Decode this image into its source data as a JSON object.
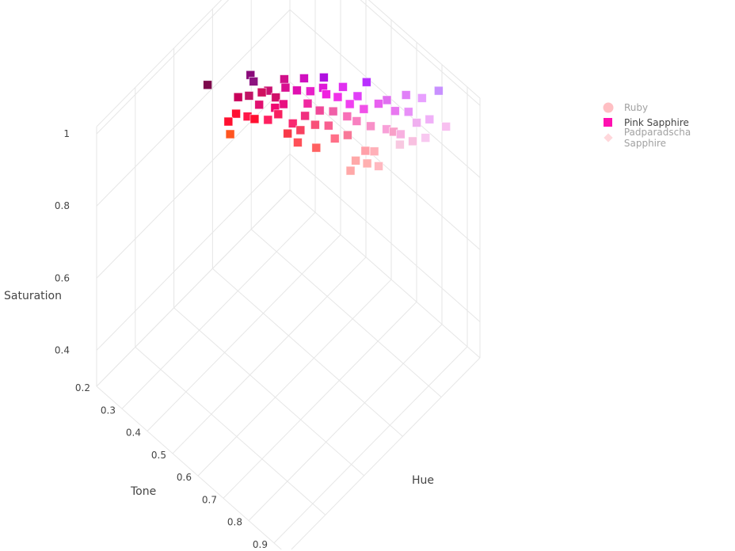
{
  "chart_data": {
    "type": "scatter3d",
    "axes": {
      "x": {
        "title": "Hue",
        "range": [
          0,
          1
        ],
        "ticks": []
      },
      "y": {
        "title": "Tone",
        "range": [
          0.2,
          0.95
        ],
        "ticks": [
          "0.2",
          "0.3",
          "0.4",
          "0.5",
          "0.6",
          "0.7",
          "0.8",
          "0.9"
        ]
      },
      "z": {
        "title": "Saturation",
        "range": [
          0.3,
          1.02
        ],
        "ticks": [
          "0.4",
          "0.6",
          "0.8",
          "1"
        ]
      }
    },
    "grid": true,
    "legend_position": "top-right",
    "legend": [
      {
        "name": "Ruby",
        "symbol": "circle",
        "color": "#ff8088",
        "visible": false
      },
      {
        "name": "Pink Sapphire",
        "symbol": "square",
        "color": "#ff10b0",
        "visible": true
      },
      {
        "name": "Padparadscha Sapphire",
        "symbol": "diamond",
        "color": "#ffb0b8",
        "visible": false
      }
    ],
    "series": [
      {
        "name": "Pink Sapphire",
        "point_fields": [
          "hue",
          "tone",
          "saturation",
          "color"
        ],
        "points": [
          [
            0.57,
            0.31,
            0.97,
            "#7d0a4c"
          ],
          [
            0.44,
            0.38,
            0.97,
            "#8a0a7a"
          ],
          [
            0.45,
            0.4,
            0.97,
            "#8d1380"
          ],
          [
            0.53,
            0.4,
            0.97,
            "#c8005a"
          ],
          [
            0.5,
            0.42,
            0.97,
            "#c01465"
          ],
          [
            0.58,
            0.43,
            0.97,
            "#ff1030"
          ],
          [
            0.62,
            0.43,
            0.97,
            "#ff1030"
          ],
          [
            0.65,
            0.46,
            0.97,
            "#ff5520"
          ],
          [
            0.56,
            0.46,
            0.97,
            "#ff1848"
          ],
          [
            0.55,
            0.48,
            0.97,
            "#ff1030"
          ],
          [
            0.37,
            0.46,
            0.97,
            "#d0108a"
          ],
          [
            0.32,
            0.5,
            0.97,
            "#d010c0"
          ],
          [
            0.27,
            0.54,
            0.97,
            "#b010e0"
          ],
          [
            0.18,
            0.64,
            0.97,
            "#b830ff"
          ],
          [
            0.03,
            0.81,
            0.97,
            "#c890ff"
          ],
          [
            0.44,
            0.45,
            0.97,
            "#c81070"
          ],
          [
            0.44,
            0.48,
            0.97,
            "#d01068"
          ],
          [
            0.5,
            0.46,
            0.97,
            "#e01070"
          ],
          [
            0.44,
            0.51,
            0.97,
            "#e81080"
          ],
          [
            0.37,
            0.51,
            0.97,
            "#e010b0"
          ],
          [
            0.34,
            0.54,
            0.97,
            "#e820c8"
          ],
          [
            0.31,
            0.58,
            0.97,
            "#f020e0"
          ],
          [
            0.29,
            0.61,
            0.97,
            "#f030e8"
          ],
          [
            0.28,
            0.65,
            0.97,
            "#f040f0"
          ],
          [
            0.26,
            0.69,
            0.97,
            "#f050e8"
          ],
          [
            0.21,
            0.71,
            0.97,
            "#e860f0"
          ],
          [
            0.19,
            0.76,
            0.97,
            "#e878f0"
          ],
          [
            0.16,
            0.79,
            0.97,
            "#e890f8"
          ],
          [
            0.09,
            0.79,
            0.97,
            "#e8a0ff"
          ],
          [
            0.13,
            0.85,
            0.97,
            "#f0b0f8"
          ],
          [
            0.11,
            0.9,
            0.97,
            "#f8c0f0"
          ],
          [
            0.19,
            0.88,
            0.97,
            "#f8c8f0"
          ],
          [
            0.24,
            0.82,
            0.97,
            "#f8b0e0"
          ],
          [
            0.26,
            0.78,
            0.97,
            "#f8a0d8"
          ],
          [
            0.29,
            0.74,
            0.97,
            "#f890c8"
          ],
          [
            0.31,
            0.7,
            0.97,
            "#f880c0"
          ],
          [
            0.32,
            0.67,
            0.97,
            "#f870b8"
          ],
          [
            0.34,
            0.63,
            0.97,
            "#f060a8"
          ],
          [
            0.37,
            0.6,
            0.97,
            "#f04898"
          ],
          [
            0.42,
            0.58,
            0.97,
            "#f03080"
          ],
          [
            0.47,
            0.57,
            0.97,
            "#f82870"
          ],
          [
            0.47,
            0.6,
            0.97,
            "#f84060"
          ],
          [
            0.51,
            0.58,
            0.97,
            "#f83848"
          ],
          [
            0.51,
            0.62,
            0.97,
            "#ff5058"
          ],
          [
            0.48,
            0.67,
            0.97,
            "#ff6060"
          ],
          [
            0.42,
            0.62,
            0.97,
            "#f85078"
          ],
          [
            0.39,
            0.65,
            0.97,
            "#f86090"
          ],
          [
            0.41,
            0.69,
            0.97,
            "#ff7088"
          ],
          [
            0.37,
            0.71,
            0.97,
            "#f87898"
          ],
          [
            0.37,
            0.78,
            0.97,
            "#ffa0a8"
          ],
          [
            0.42,
            0.78,
            0.97,
            "#ffa8a8"
          ],
          [
            0.46,
            0.79,
            0.97,
            "#ffa8a8"
          ],
          [
            0.4,
            0.81,
            0.97,
            "#ffb0b0"
          ],
          [
            0.38,
            0.84,
            0.97,
            "#ffb8c0"
          ],
          [
            0.35,
            0.8,
            0.97,
            "#ffb0b8"
          ],
          [
            0.25,
            0.8,
            0.97,
            "#f8a0c8"
          ],
          [
            0.23,
            0.86,
            0.97,
            "#f8c0e0"
          ],
          [
            0.27,
            0.84,
            0.97,
            "#f8c8e0"
          ],
          [
            0.17,
            0.83,
            0.97,
            "#f0b0f0"
          ],
          [
            0.47,
            0.5,
            0.97,
            "#f00870"
          ],
          [
            0.52,
            0.51,
            0.97,
            "#ff2060"
          ],
          [
            0.48,
            0.52,
            0.97,
            "#f82060"
          ],
          [
            0.38,
            0.56,
            0.97,
            "#f028a0"
          ],
          [
            0.3,
            0.56,
            0.97,
            "#e018d8"
          ],
          [
            0.25,
            0.6,
            0.97,
            "#e030f0"
          ],
          [
            0.24,
            0.65,
            0.97,
            "#e040f8"
          ],
          [
            0.18,
            0.72,
            0.97,
            "#e070f0"
          ],
          [
            0.12,
            0.75,
            0.97,
            "#e080f8"
          ],
          [
            0.46,
            0.44,
            0.97,
            "#d01060"
          ],
          [
            0.39,
            0.48,
            0.97,
            "#d81090"
          ]
        ]
      }
    ]
  }
}
